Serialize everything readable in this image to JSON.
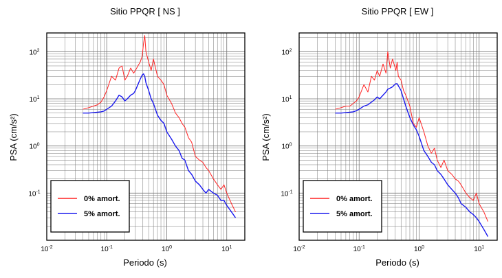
{
  "colors": {
    "undamped": "#ff2222",
    "damped": "#1a1aee",
    "grid": "#777777",
    "frame": "#000000"
  },
  "chart_data": [
    {
      "type": "line",
      "title": "Sitio PPQR [ NS ]",
      "xlabel": "Periodo (s)",
      "ylabel": "PSA (cm/s²)",
      "xscale": "log",
      "yscale": "log",
      "xlim": [
        0.01,
        20
      ],
      "ylim": [
        0.01,
        250
      ],
      "x_ticks": [
        {
          "base": "10",
          "exp": "-2"
        },
        {
          "base": "10",
          "exp": "-1"
        },
        {
          "base": "10",
          "exp": "0"
        },
        {
          "base": "10",
          "exp": "1"
        }
      ],
      "y_ticks": [
        {
          "base": "10",
          "exp": "-1"
        },
        {
          "base": "10",
          "exp": "0"
        },
        {
          "base": "10",
          "exp": "1"
        },
        {
          "base": "10",
          "exp": "2"
        }
      ],
      "grid": true,
      "legend_position": "bottom-left",
      "series": [
        {
          "name": "0% amort.",
          "color": "#ff2222",
          "x": [
            0.04,
            0.05,
            0.06,
            0.07,
            0.08,
            0.09,
            0.1,
            0.12,
            0.14,
            0.16,
            0.18,
            0.2,
            0.22,
            0.25,
            0.28,
            0.3,
            0.33,
            0.36,
            0.39,
            0.41,
            0.43,
            0.45,
            0.5,
            0.55,
            0.6,
            0.7,
            0.8,
            0.9,
            1.0,
            1.2,
            1.4,
            1.6,
            1.8,
            2.0,
            2.3,
            2.6,
            3.0,
            3.5,
            4.0,
            4.5,
            5.0,
            6.0,
            7.0,
            8.0,
            9.0,
            10,
            12,
            14
          ],
          "y": [
            6,
            6.5,
            7,
            7.5,
            8.5,
            11,
            15,
            30,
            25,
            45,
            50,
            25,
            30,
            45,
            35,
            40,
            50,
            60,
            80,
            150,
            220,
            100,
            60,
            40,
            70,
            30,
            25,
            20,
            12,
            8,
            5,
            4,
            3,
            2.5,
            1.5,
            1.2,
            0.6,
            0.5,
            0.45,
            0.35,
            0.3,
            0.2,
            0.15,
            0.12,
            0.15,
            0.1,
            0.06,
            0.04
          ]
        },
        {
          "name": "5% amort.",
          "color": "#1a1aee",
          "x": [
            0.04,
            0.05,
            0.06,
            0.07,
            0.08,
            0.09,
            0.1,
            0.12,
            0.14,
            0.16,
            0.18,
            0.2,
            0.22,
            0.25,
            0.28,
            0.3,
            0.33,
            0.36,
            0.39,
            0.41,
            0.43,
            0.45,
            0.5,
            0.55,
            0.6,
            0.7,
            0.8,
            0.9,
            1.0,
            1.2,
            1.4,
            1.6,
            1.8,
            2.0,
            2.3,
            2.6,
            3.0,
            3.5,
            4.0,
            4.5,
            5.0,
            6.0,
            7.0,
            8.0,
            9.0,
            10,
            12,
            14
          ],
          "y": [
            5,
            5,
            5.1,
            5.2,
            5.3,
            5.5,
            6,
            7,
            9,
            12,
            11,
            9,
            10,
            12,
            13,
            15,
            20,
            26,
            32,
            34,
            30,
            22,
            15,
            10,
            8,
            4.5,
            3.5,
            3,
            2,
            1.4,
            1,
            0.8,
            0.55,
            0.5,
            0.3,
            0.25,
            0.18,
            0.15,
            0.12,
            0.1,
            0.12,
            0.1,
            0.09,
            0.07,
            0.07,
            0.055,
            0.04,
            0.03
          ]
        }
      ]
    },
    {
      "type": "line",
      "title": "Sitio PPQR [ EW ]",
      "xlabel": "Periodo (s)",
      "ylabel": "PSA (cm/s²)",
      "xscale": "log",
      "yscale": "log",
      "xlim": [
        0.01,
        20
      ],
      "ylim": [
        0.01,
        250
      ],
      "x_ticks": [
        {
          "base": "10",
          "exp": "-2"
        },
        {
          "base": "10",
          "exp": "-1"
        },
        {
          "base": "10",
          "exp": "0"
        },
        {
          "base": "10",
          "exp": "1"
        }
      ],
      "y_ticks": [
        {
          "base": "10",
          "exp": "-1"
        },
        {
          "base": "10",
          "exp": "0"
        },
        {
          "base": "10",
          "exp": "1"
        },
        {
          "base": "10",
          "exp": "2"
        }
      ],
      "grid": true,
      "legend_position": "bottom-left",
      "series": [
        {
          "name": "0% amort.",
          "color": "#ff2222",
          "x": [
            0.04,
            0.05,
            0.06,
            0.07,
            0.08,
            0.09,
            0.1,
            0.12,
            0.14,
            0.16,
            0.18,
            0.2,
            0.22,
            0.25,
            0.28,
            0.3,
            0.33,
            0.36,
            0.39,
            0.41,
            0.43,
            0.45,
            0.5,
            0.55,
            0.6,
            0.7,
            0.8,
            0.9,
            1.0,
            1.2,
            1.4,
            1.6,
            1.8,
            2.0,
            2.3,
            2.6,
            3.0,
            3.5,
            4.0,
            4.5,
            5.0,
            6.0,
            7.0,
            8.0,
            9.0,
            10,
            12,
            14
          ],
          "y": [
            6,
            6.5,
            7,
            7,
            8,
            9,
            11,
            20,
            14,
            30,
            25,
            40,
            30,
            55,
            35,
            100,
            45,
            70,
            50,
            40,
            60,
            30,
            25,
            15,
            12,
            7,
            3,
            2.5,
            4,
            2,
            1,
            0.7,
            0.9,
            0.5,
            0.35,
            0.5,
            0.3,
            0.25,
            0.2,
            0.18,
            0.15,
            0.1,
            0.08,
            0.07,
            0.1,
            0.06,
            0.04,
            0.025
          ]
        },
        {
          "name": "5% amort.",
          "color": "#1a1aee",
          "x": [
            0.04,
            0.05,
            0.06,
            0.07,
            0.08,
            0.09,
            0.1,
            0.12,
            0.14,
            0.16,
            0.18,
            0.2,
            0.22,
            0.25,
            0.28,
            0.3,
            0.33,
            0.36,
            0.39,
            0.41,
            0.43,
            0.45,
            0.5,
            0.55,
            0.6,
            0.7,
            0.8,
            0.9,
            1.0,
            1.2,
            1.4,
            1.6,
            1.8,
            2.0,
            2.3,
            2.6,
            3.0,
            3.5,
            4.0,
            4.5,
            5.0,
            6.0,
            7.0,
            8.0,
            9.0,
            10,
            12,
            14
          ],
          "y": [
            5,
            5,
            5.1,
            5.2,
            5.3,
            5.6,
            6,
            7,
            7.5,
            8.5,
            9.5,
            11,
            10,
            12,
            14,
            16,
            17,
            18,
            20,
            21,
            21,
            19,
            15,
            10,
            7,
            4,
            2.8,
            2.2,
            1.6,
            0.8,
            0.6,
            0.45,
            0.4,
            0.3,
            0.25,
            0.2,
            0.15,
            0.12,
            0.1,
            0.08,
            0.06,
            0.05,
            0.04,
            0.035,
            0.03,
            0.025,
            0.017,
            0.012
          ]
        }
      ]
    }
  ]
}
